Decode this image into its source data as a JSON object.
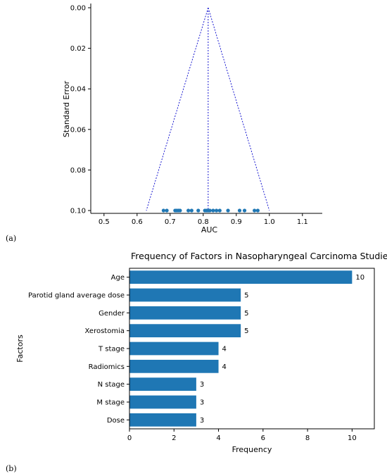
{
  "panel_labels": {
    "a": "(a)",
    "b": "(b)"
  },
  "colors": {
    "points": "#1f77b4",
    "bars": "#1f77b4",
    "funnel": "#0000cc"
  },
  "chart_data": [
    {
      "type": "scatter",
      "title": "",
      "xlabel": "AUC",
      "ylabel": "Standard Error",
      "xlim": [
        0.46,
        1.16
      ],
      "ylim": [
        0.1,
        0.0
      ],
      "y_axis_inverted": true,
      "xticks": [
        0.5,
        0.6,
        0.7,
        0.8,
        0.9,
        1.0,
        1.1
      ],
      "xtick_labels": [
        "0.5",
        "0.6",
        "0.7",
        "0.8",
        "0.9",
        "1.0",
        "1.1"
      ],
      "yticks": [
        0.0,
        0.02,
        0.04,
        0.06,
        0.08,
        0.1
      ],
      "ytick_labels": [
        "0.00",
        "0.02",
        "0.04",
        "0.06",
        "0.08",
        "0.10"
      ],
      "points": {
        "x": [
          0.68,
          0.69,
          0.715,
          0.72,
          0.725,
          0.73,
          0.755,
          0.765,
          0.785,
          0.805,
          0.81,
          0.815,
          0.82,
          0.83,
          0.84,
          0.85,
          0.875,
          0.91,
          0.925,
          0.955,
          0.965
        ],
        "y": [
          0.1,
          0.1,
          0.1,
          0.1,
          0.1,
          0.1,
          0.1,
          0.1,
          0.1,
          0.1,
          0.1,
          0.1,
          0.1,
          0.1,
          0.1,
          0.1,
          0.1,
          0.1,
          0.1,
          0.1,
          0.1
        ]
      },
      "summary_estimate": 0.815,
      "funnel_lines": {
        "left": {
          "x": [
            0.815,
            0.628
          ],
          "y": [
            0.0,
            0.1
          ]
        },
        "right": {
          "x": [
            0.815,
            1.0
          ],
          "y": [
            0.0,
            0.1
          ]
        }
      },
      "grid": false
    },
    {
      "type": "bar",
      "orientation": "horizontal",
      "title": "Frequency of Factors in Nasopharyngeal Carcinoma Studies",
      "xlabel": "Frequency",
      "ylabel": "Factors",
      "xlim": [
        0,
        11
      ],
      "xticks": [
        0,
        2,
        4,
        6,
        8,
        10
      ],
      "categories": [
        "Age",
        "Parotid gland average dose",
        "Gender",
        "Xerostomia",
        "T stage",
        "Radiomics",
        "N stage",
        "M stage",
        "Dose"
      ],
      "values": [
        10,
        5,
        5,
        5,
        4,
        4,
        3,
        3,
        3
      ],
      "data_labels": [
        "10",
        "5",
        "5",
        "5",
        "4",
        "4",
        "3",
        "3",
        "3"
      ],
      "grid": false
    }
  ]
}
